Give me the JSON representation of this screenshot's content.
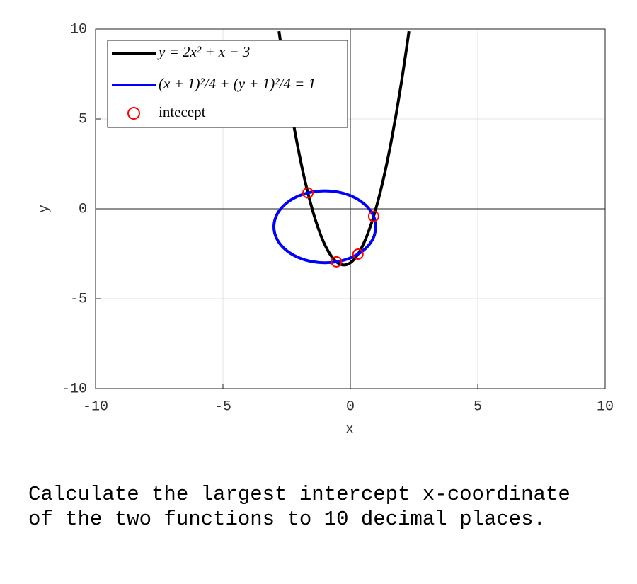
{
  "chart_data": {
    "type": "line",
    "xlabel": "x",
    "ylabel": "y",
    "xlim": [
      -10,
      10
    ],
    "ylim": [
      -10,
      10
    ],
    "xticks": [
      -10,
      -5,
      0,
      5,
      10
    ],
    "yticks": [
      -10,
      -5,
      0,
      5,
      10
    ],
    "grid": true,
    "legend": "upper left",
    "series": [
      {
        "name": "y = 2x² + x − 3",
        "color": "#000000",
        "type": "line",
        "x": [
          -2.8,
          -2.6,
          -2.4,
          -2.2,
          -2.0,
          -1.8,
          -1.6,
          -1.4,
          -1.2,
          -1.0,
          -0.8,
          -0.6,
          -0.4,
          -0.2,
          0,
          0.2,
          0.4,
          0.6,
          0.8,
          1.0,
          1.2,
          1.4,
          1.6,
          1.8,
          2.0,
          2.2,
          2.3
        ],
        "values": [
          9.88,
          7.92,
          6.12,
          4.48,
          3,
          1.68,
          0.52,
          -0.48,
          -1.32,
          -2,
          -2.52,
          -2.88,
          -3.08,
          -3.12,
          -3,
          -2.72,
          -2.28,
          -1.68,
          -0.92,
          0,
          1.08,
          2.32,
          3.72,
          5.28,
          7,
          8.88,
          9.88
        ]
      },
      {
        "name": "(x + 1)²/4 + (y + 1)²/4 = 1",
        "color": "#0000ff",
        "type": "line",
        "x": [
          1,
          0.9319,
          0.7321,
          0.4142,
          0,
          -0.4824,
          -1,
          -1.5176,
          -2,
          -2.4142,
          -2.7321,
          -2.9319,
          -3,
          -2.9319,
          -2.7321,
          -2.4142,
          -2,
          -1.5176,
          -1,
          -0.4824,
          0,
          0.4142,
          0.7321,
          0.9319,
          1
        ],
        "values": [
          -1,
          -0.4824,
          0,
          0.4142,
          0.7321,
          0.9319,
          1,
          0.9319,
          0.7321,
          0.4142,
          0,
          -0.4824,
          -1,
          -1.5176,
          -2,
          -2.4142,
          -2.7321,
          -2.9319,
          -3,
          -2.9319,
          -2.7321,
          -2.4142,
          -2,
          -1.5176,
          -1
        ]
      },
      {
        "name": "intecept",
        "color": "#ff0000",
        "type": "scatter",
        "x": [
          -1.666,
          -0.547,
          0.3,
          0.9134
        ],
        "values": [
          0.885,
          -2.949,
          -2.52,
          -0.418
        ]
      }
    ]
  },
  "question": [
    "Calculate the largest intercept x-coordinate",
    "of the two functions to 10 decimal places."
  ]
}
